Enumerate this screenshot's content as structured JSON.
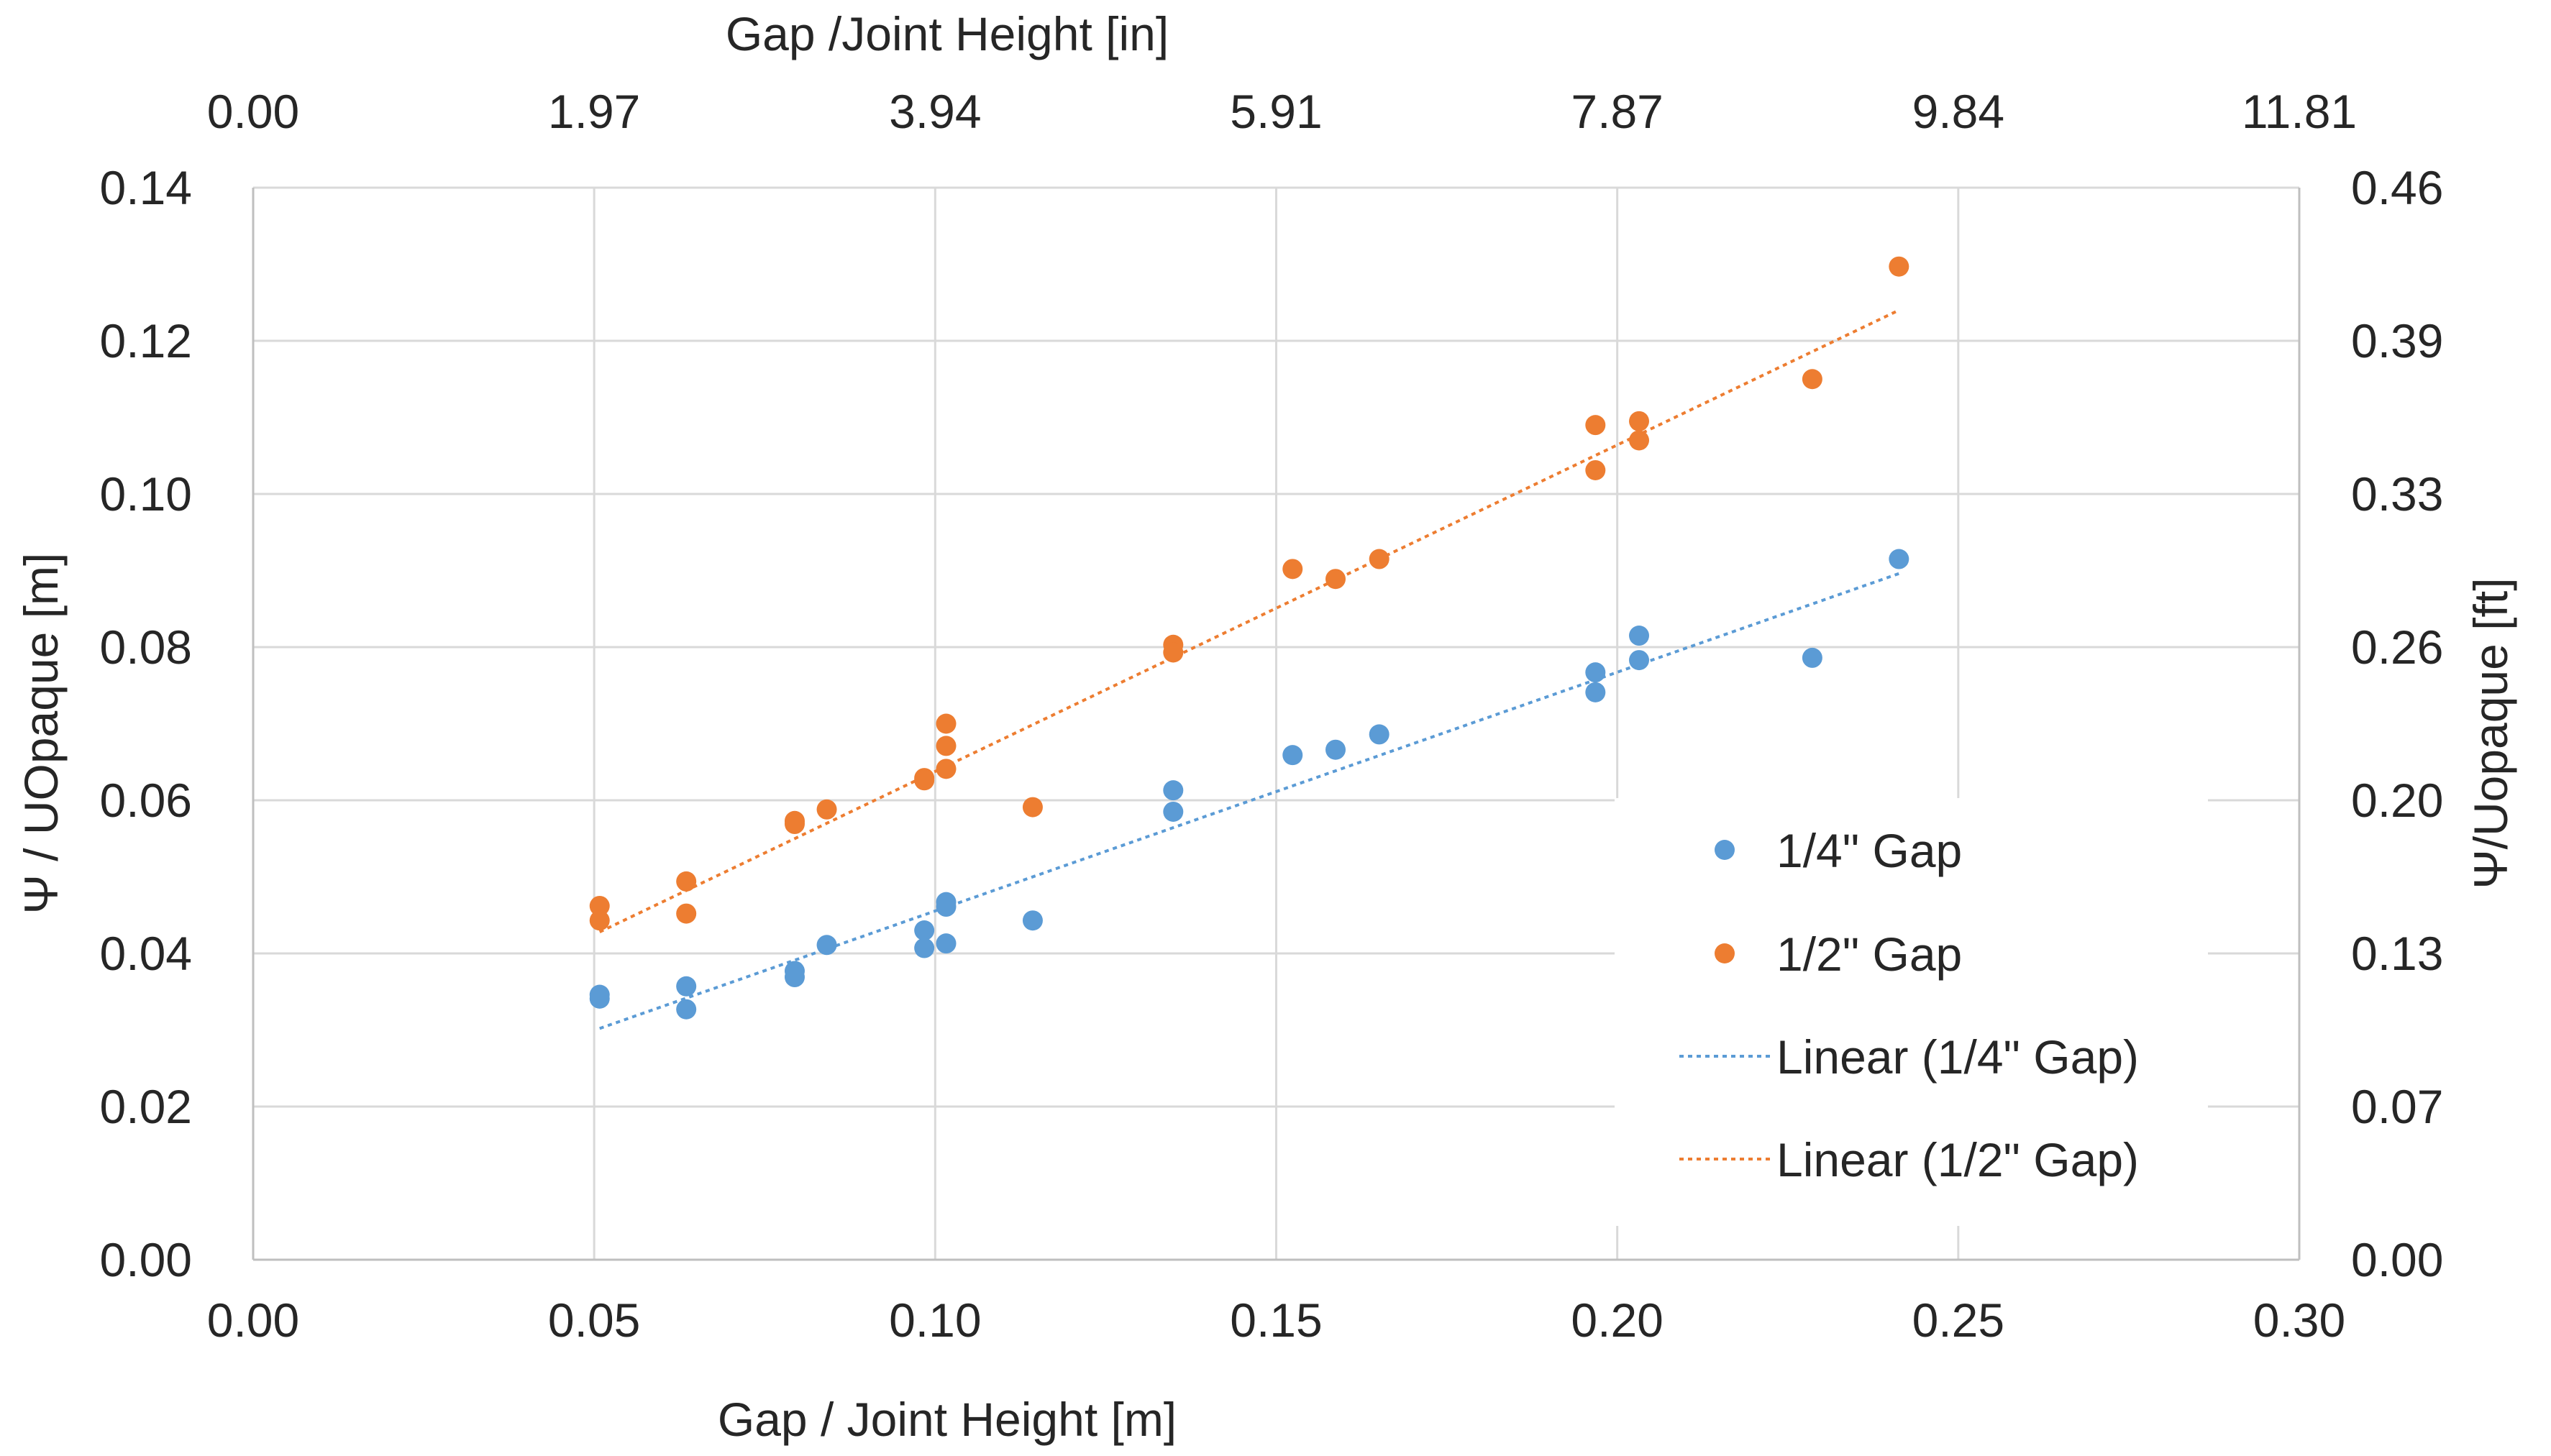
{
  "chart_data": {
    "type": "scatter",
    "title": "",
    "xlabel": "Gap / Joint Height [m]",
    "ylabel": "Ψ / UOpaque [m]",
    "secondary_xlabel": "Gap /Joint Height [in]",
    "secondary_ylabel": "Ψ/Uopaque [ft]",
    "xlim": [
      0,
      0.3
    ],
    "ylim": [
      0,
      0.14
    ],
    "grid": true,
    "legend_position": "right-middle",
    "x_ticks": [
      "0.00",
      "0.05",
      "0.10",
      "0.15",
      "0.20",
      "0.25",
      "0.30"
    ],
    "y_ticks": [
      "0.00",
      "0.02",
      "0.04",
      "0.06",
      "0.08",
      "0.10",
      "0.12",
      "0.14"
    ],
    "top_ticks": [
      "0.00",
      "1.97",
      "3.94",
      "5.91",
      "7.87",
      "9.84",
      "11.81"
    ],
    "right_ticks": [
      "0.00",
      "0.07",
      "0.13",
      "0.20",
      "0.26",
      "0.33",
      "0.39",
      "0.46"
    ],
    "series": [
      {
        "name": "1/4\" Gap",
        "color": "#5B9BD5",
        "points": [
          [
            0.0508,
            0.0346
          ],
          [
            0.0508,
            0.0341
          ],
          [
            0.0635,
            0.0357
          ],
          [
            0.0635,
            0.0327
          ],
          [
            0.0794,
            0.0377
          ],
          [
            0.0794,
            0.0369
          ],
          [
            0.0841,
            0.0411
          ],
          [
            0.0984,
            0.043
          ],
          [
            0.0984,
            0.0407
          ],
          [
            0.1016,
            0.0467
          ],
          [
            0.1016,
            0.0461
          ],
          [
            0.1016,
            0.0413
          ],
          [
            0.1143,
            0.0443
          ],
          [
            0.1349,
            0.0613
          ],
          [
            0.1349,
            0.0585
          ],
          [
            0.1524,
            0.0659
          ],
          [
            0.1587,
            0.0666
          ],
          [
            0.1651,
            0.0686
          ],
          [
            0.1968,
            0.0767
          ],
          [
            0.1968,
            0.0741
          ],
          [
            0.2032,
            0.0815
          ],
          [
            0.2032,
            0.0783
          ],
          [
            0.2286,
            0.0786
          ],
          [
            0.2413,
            0.0915
          ]
        ]
      },
      {
        "name": "1/2\" Gap",
        "color": "#ED7D31",
        "points": [
          [
            0.0508,
            0.0462
          ],
          [
            0.0508,
            0.0443
          ],
          [
            0.0635,
            0.0494
          ],
          [
            0.0635,
            0.0452
          ],
          [
            0.0794,
            0.0573
          ],
          [
            0.0794,
            0.0569
          ],
          [
            0.0841,
            0.0588
          ],
          [
            0.0984,
            0.0629
          ],
          [
            0.0984,
            0.0626
          ],
          [
            0.1016,
            0.07
          ],
          [
            0.1016,
            0.0671
          ],
          [
            0.1016,
            0.0641
          ],
          [
            0.1143,
            0.0591
          ],
          [
            0.1349,
            0.0803
          ],
          [
            0.1349,
            0.0793
          ],
          [
            0.1524,
            0.0902
          ],
          [
            0.1587,
            0.0889
          ],
          [
            0.1651,
            0.0915
          ],
          [
            0.1968,
            0.109
          ],
          [
            0.1968,
            0.1031
          ],
          [
            0.2032,
            0.1095
          ],
          [
            0.2032,
            0.107
          ],
          [
            0.2286,
            0.115
          ],
          [
            0.2413,
            0.1297
          ]
        ]
      }
    ],
    "trendlines": [
      {
        "name": "Linear (1/4\" Gap)",
        "color": "#5B9BD5",
        "x": [
          0.0508,
          0.2413
        ],
        "y": [
          0.0302,
          0.0896
        ]
      },
      {
        "name": "Linear (1/2\" Gap)",
        "color": "#ED7D31",
        "x": [
          0.0508,
          0.2413
        ],
        "y": [
          0.0428,
          0.124
        ]
      }
    ]
  }
}
